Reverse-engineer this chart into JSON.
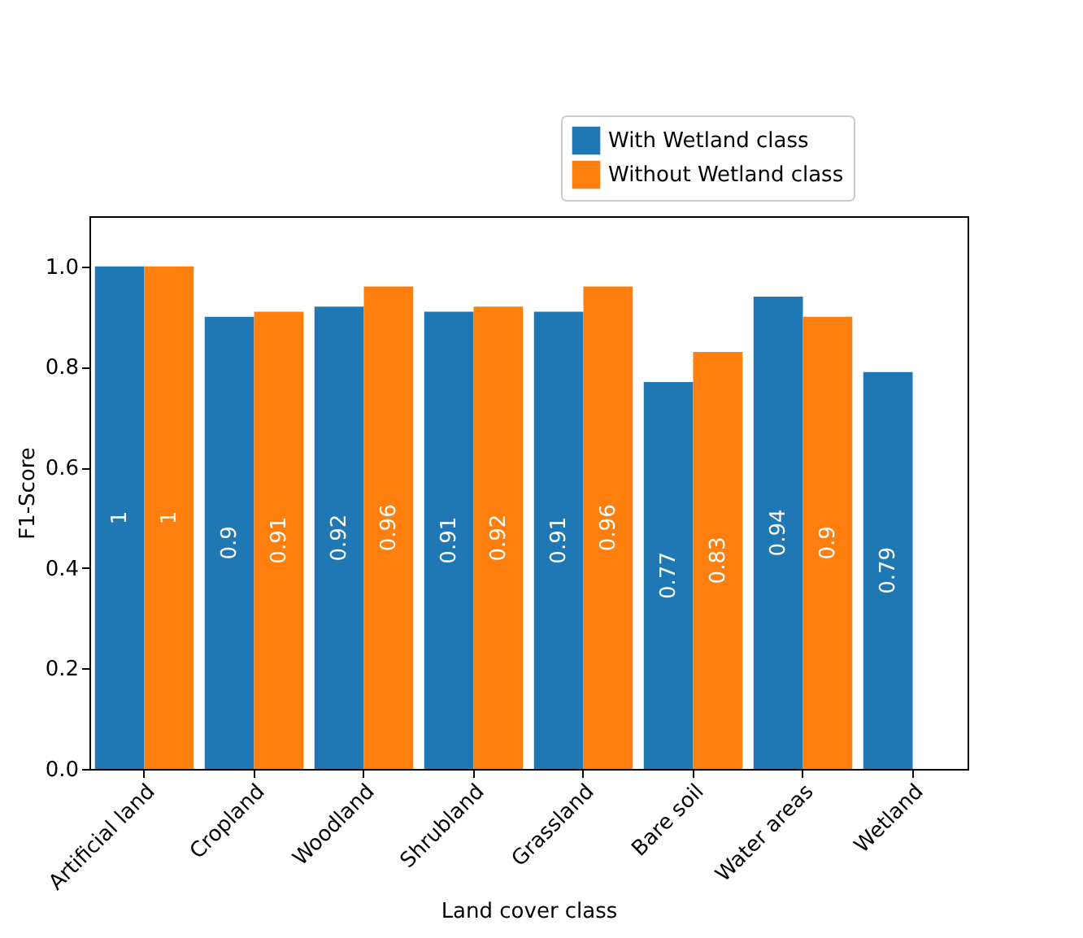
{
  "chart_data": {
    "type": "bar",
    "xlabel": "Land cover class",
    "ylabel": "F1-Score",
    "categories": [
      "Artificial land",
      "Cropland",
      "Woodland",
      "Shrubland",
      "Grassland",
      "Bare soil",
      "Water areas",
      "Wetland"
    ],
    "series": [
      {
        "name": "With Wetland class",
        "color": "#1f77b4",
        "values": [
          1,
          0.9,
          0.92,
          0.91,
          0.91,
          0.77,
          0.94,
          0.79
        ]
      },
      {
        "name": "Without Wetland class",
        "color": "#ff7f0e",
        "values": [
          1,
          0.91,
          0.96,
          0.92,
          0.96,
          0.83,
          0.9,
          null
        ]
      }
    ],
    "ylim": [
      0,
      1.1
    ],
    "yticks": [
      {
        "value": 0,
        "label": "0.0"
      },
      0.2,
      0.4,
      0.6,
      0.8,
      {
        "value": 1,
        "label": "1.0"
      }
    ],
    "data_labels": true,
    "legend": "top right",
    "grid": false
  }
}
